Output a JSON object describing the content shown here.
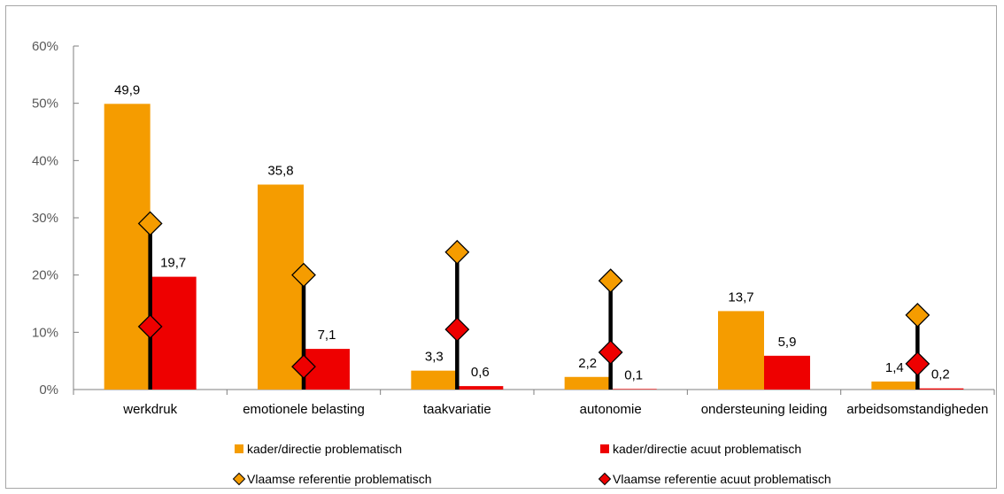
{
  "chart_data": {
    "type": "bar",
    "categories": [
      "werkdruk",
      "emotionele belasting",
      "taakvariatie",
      "autonomie",
      "ondersteuning leiding",
      "arbeidsomstandigheden"
    ],
    "ylim": [
      0,
      60
    ],
    "y_ticks": [
      "0%",
      "10%",
      "20%",
      "30%",
      "40%",
      "50%",
      "60%"
    ],
    "grid": false,
    "legend_position": "bottom",
    "series": [
      {
        "name": "kader/directie problematisch",
        "kind": "bar",
        "color": "#f59c00",
        "values": [
          49.9,
          35.8,
          3.3,
          2.2,
          13.7,
          1.4
        ],
        "labels": [
          "49,9",
          "35,8",
          "3,3",
          "2,2",
          "13,7",
          "1,4"
        ]
      },
      {
        "name": "kader/directie acuut problematisch",
        "kind": "bar",
        "color": "#ee0000",
        "values": [
          19.7,
          7.1,
          0.6,
          0.1,
          5.9,
          0.2
        ],
        "labels": [
          "19,7",
          "7,1",
          "0,6",
          "0,1",
          "5,9",
          "0,2"
        ]
      },
      {
        "name": "Vlaamse referentie problematisch",
        "kind": "diamond",
        "color": "#f59c00",
        "values": [
          29,
          20,
          24,
          19,
          null,
          13
        ]
      },
      {
        "name": "Vlaamse referentie acuut problematisch",
        "kind": "diamond",
        "color": "#ee0000",
        "values": [
          11,
          4,
          10.5,
          6.5,
          null,
          4.5
        ]
      }
    ]
  }
}
